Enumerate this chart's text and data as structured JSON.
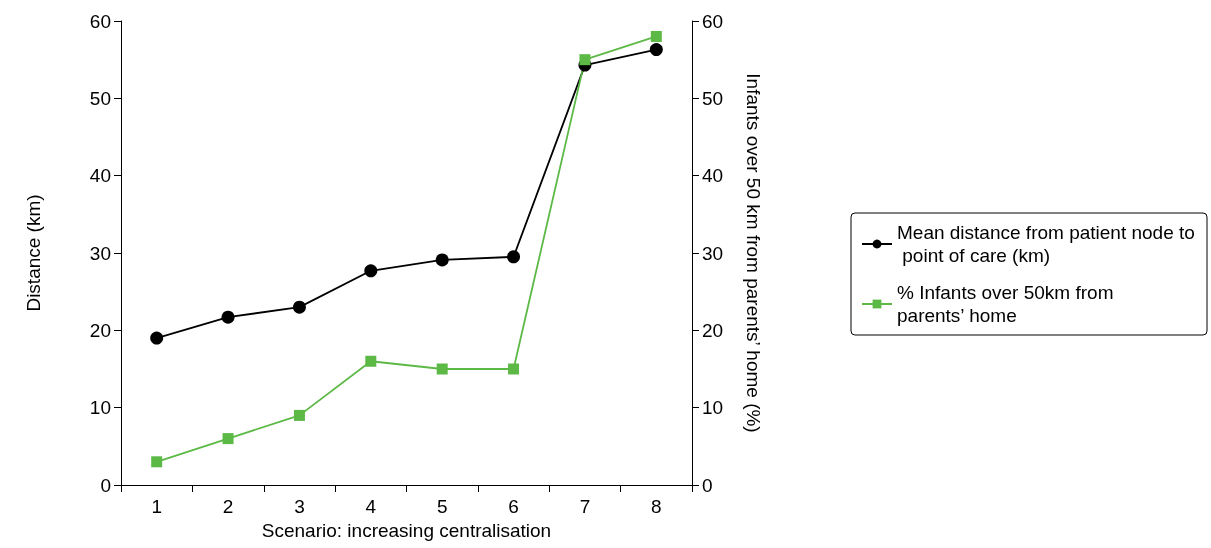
{
  "chart_data": {
    "type": "line",
    "xlabel": "Scenario: increasing centralisation",
    "ylabel": "Distance (km)",
    "y2label": "Infants over 50 km from parents’ home (%)",
    "categories": [
      "1",
      "2",
      "3",
      "4",
      "5",
      "6",
      "7",
      "8"
    ],
    "series": [
      {
        "name": "Mean distance from patient node to point of care (km)",
        "color": "#000000",
        "marker": "circle",
        "values": [
          19.0,
          21.7,
          23.0,
          27.7,
          29.1,
          29.5,
          54.3,
          56.3
        ]
      },
      {
        "name": "% Infants over 50km from parents’ home",
        "color": "#5cb946",
        "marker": "square",
        "axis": "y2",
        "values": [
          3,
          6,
          9,
          16,
          15,
          15,
          55,
          58
        ]
      }
    ],
    "ylim": [
      0,
      60
    ],
    "yticks": [
      0,
      10,
      20,
      30,
      40,
      50,
      60
    ],
    "y2lim": [
      0,
      60
    ],
    "y2ticks": [
      0,
      10,
      20,
      30,
      40,
      50,
      60
    ],
    "grid": false,
    "legend": "right",
    "line_style": "solid"
  }
}
